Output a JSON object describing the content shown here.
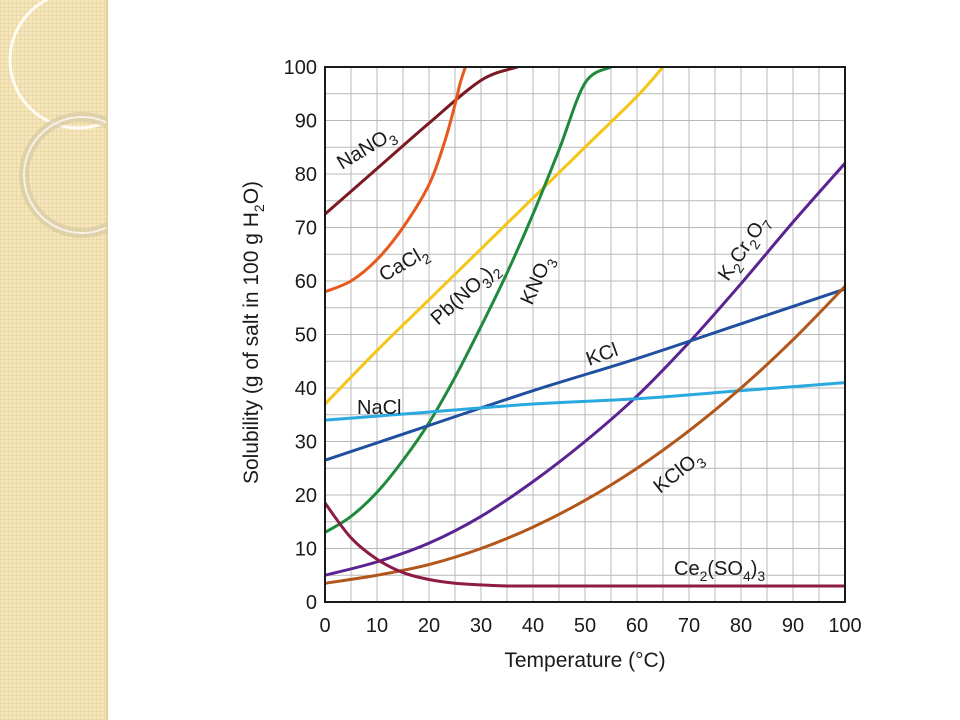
{
  "chart_data": {
    "type": "line",
    "xlabel": "Temperature (°C)",
    "ylabel_parts": [
      "Solubility (g of salt in 100 g H",
      "2",
      "O)"
    ],
    "xlim": [
      0,
      100
    ],
    "ylim": [
      0,
      100
    ],
    "xticks": [
      0,
      10,
      20,
      30,
      40,
      50,
      60,
      70,
      80,
      90,
      100
    ],
    "yticks": [
      0,
      10,
      20,
      30,
      40,
      50,
      60,
      70,
      80,
      90,
      100
    ],
    "grid": true,
    "series": [
      {
        "name": "NaNO3",
        "label_parts": [
          [
            "NaNO",
            ""
          ],
          [
            "3",
            "sub"
          ]
        ],
        "color": "#7a1b24",
        "x": [
          0,
          10,
          20,
          30,
          37
        ],
        "y": [
          72.5,
          81,
          89.5,
          97.5,
          100
        ]
      },
      {
        "name": "CaCl2",
        "label_parts": [
          [
            "CaCl",
            ""
          ],
          [
            "2",
            "sub"
          ]
        ],
        "color": "#e8591e",
        "x": [
          0,
          5,
          10,
          15,
          20,
          23,
          25,
          26,
          27
        ],
        "y": [
          58,
          60,
          64,
          70,
          78,
          86,
          93,
          97,
          100
        ]
      },
      {
        "name": "Pb(NO3)2",
        "label_parts": [
          [
            "Pb(NO",
            ""
          ],
          [
            "3",
            "sub"
          ],
          [
            ")",
            ""
          ],
          [
            "2",
            "sub"
          ]
        ],
        "color": "#f5c518",
        "x": [
          0,
          10,
          20,
          30,
          40,
          50,
          60,
          65
        ],
        "y": [
          37,
          47,
          56.5,
          66,
          75.5,
          85,
          94.5,
          100
        ]
      },
      {
        "name": "KNO3",
        "label_parts": [
          [
            "KNO",
            ""
          ],
          [
            "3",
            "sub"
          ]
        ],
        "color": "#1f8a3c",
        "x": [
          0,
          5,
          10,
          15,
          20,
          25,
          30,
          35,
          40,
          45,
          50,
          55
        ],
        "y": [
          13,
          16,
          20.5,
          26.5,
          33.5,
          42,
          51.5,
          61.5,
          72.5,
          84.5,
          97,
          100
        ]
      },
      {
        "name": "K2Cr2O7",
        "label_parts": [
          [
            "K",
            ""
          ],
          [
            "2",
            "sub"
          ],
          [
            "Cr",
            ""
          ],
          [
            "2",
            "sub"
          ],
          [
            "O",
            ""
          ],
          [
            "7",
            "sub"
          ]
        ],
        "color": "#5b2391",
        "x": [
          0,
          10,
          20,
          30,
          40,
          50,
          60,
          70,
          80,
          90,
          100
        ],
        "y": [
          5,
          7.5,
          11,
          16,
          22.5,
          30,
          38.5,
          48.5,
          59.5,
          71,
          82
        ]
      },
      {
        "name": "KCl",
        "label_parts": [
          [
            "KCl",
            ""
          ]
        ],
        "color": "#1f4f9e",
        "x": [
          0,
          20,
          40,
          60,
          80,
          100
        ],
        "y": [
          26.5,
          33,
          39.5,
          45.5,
          52,
          58.5
        ]
      },
      {
        "name": "NaCl",
        "label_parts": [
          [
            "NaCl",
            ""
          ]
        ],
        "color": "#2aa9e0",
        "x": [
          0,
          20,
          40,
          60,
          80,
          100
        ],
        "y": [
          34,
          35.5,
          37,
          38,
          39.5,
          41
        ]
      },
      {
        "name": "KClO3",
        "label_parts": [
          [
            "KClO",
            ""
          ],
          [
            "3",
            "sub"
          ]
        ],
        "color": "#b2561a",
        "x": [
          0,
          10,
          20,
          30,
          40,
          50,
          60,
          70,
          80,
          90,
          100
        ],
        "y": [
          3.5,
          5,
          7,
          10,
          14,
          19,
          25,
          32,
          40,
          49,
          59
        ]
      },
      {
        "name": "Ce2(SO4)3",
        "label_parts": [
          [
            "Ce",
            ""
          ],
          [
            "2",
            "sub"
          ],
          [
            "(SO",
            ""
          ],
          [
            "4",
            "sub"
          ],
          [
            ")",
            ""
          ],
          [
            "3",
            "sub"
          ]
        ],
        "color": "#8e1b45",
        "x": [
          0,
          5,
          10,
          15,
          20,
          25,
          30,
          35,
          40,
          60,
          80,
          100
        ],
        "y": [
          18.5,
          12,
          8,
          5.5,
          4.2,
          3.5,
          3.2,
          3,
          3,
          3,
          3,
          3
        ]
      }
    ]
  }
}
